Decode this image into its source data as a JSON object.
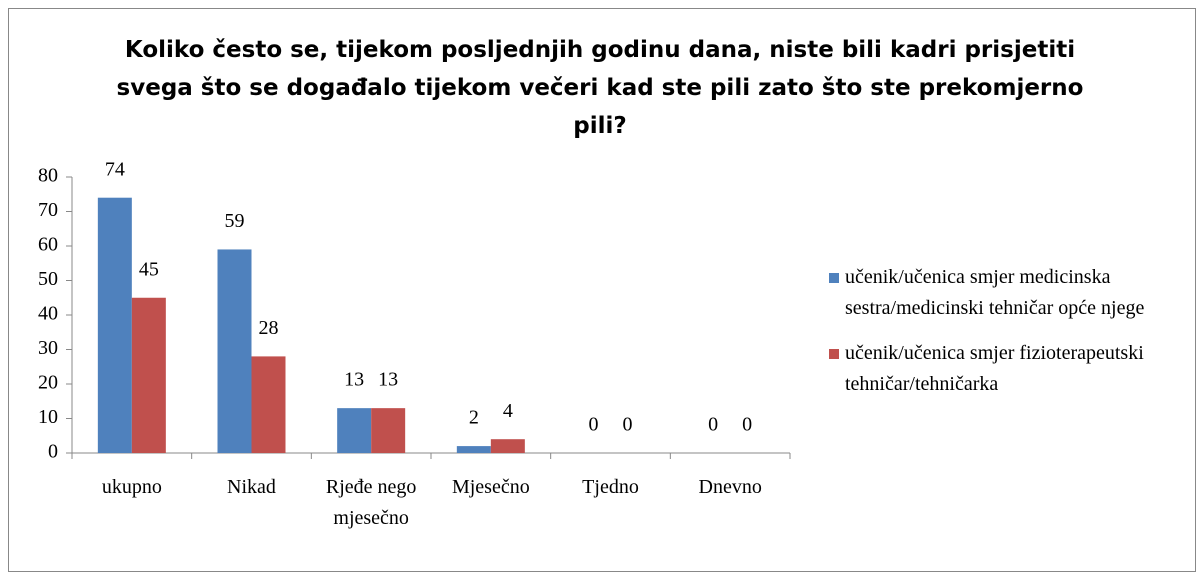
{
  "chart_data": {
    "type": "bar",
    "title": "Koliko često se, tijekom posljednjih godinu dana, niste bili kadri prisjetiti svega što se događalo tijekom večeri kad ste pili zato što ste prekomjerno pili?",
    "categories": [
      "ukupno",
      "Nikad",
      "Rjeđe nego mjesečno",
      "Mjesečno",
      "Tjedno",
      "Dnevno"
    ],
    "series": [
      {
        "name": "učenik/učenica smjer medicinska sestra/medicinski tehničar opće njege",
        "color": "#4f81bd",
        "values": [
          74,
          59,
          13,
          2,
          0,
          0
        ]
      },
      {
        "name": "učenik/učenica smjer fizioterapeutski tehničar/tehničarka",
        "color": "#c0504d",
        "values": [
          45,
          28,
          13,
          4,
          0,
          0
        ]
      }
    ],
    "ylim": [
      0,
      80
    ],
    "yticks": [
      0,
      10,
      20,
      30,
      40,
      50,
      60,
      70,
      80
    ],
    "grid": false,
    "legend": "right"
  }
}
